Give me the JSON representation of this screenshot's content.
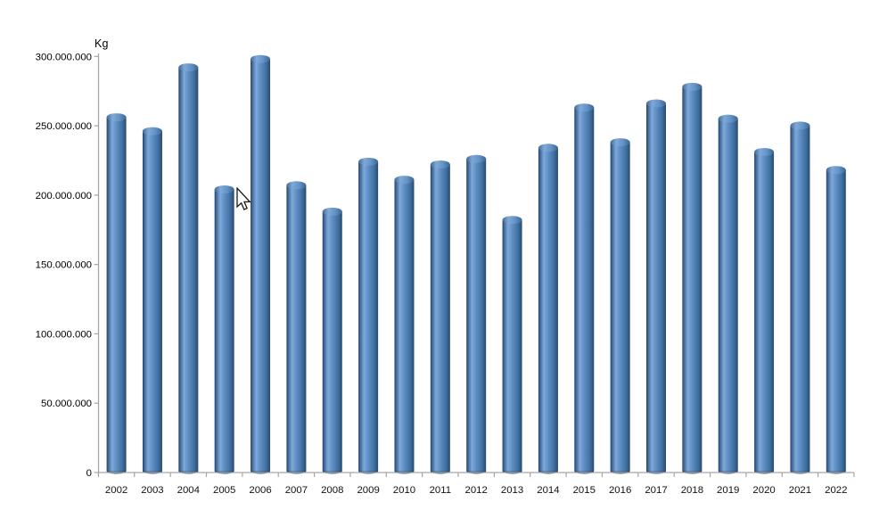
{
  "chart_data": {
    "type": "bar",
    "bar_style": "cylinder-3d",
    "title": "",
    "xlabel": "",
    "ylabel": "Kg",
    "unit": "Kg",
    "categories": [
      "2002",
      "2003",
      "2004",
      "2005",
      "2006",
      "2007",
      "2008",
      "2009",
      "2010",
      "2011",
      "2012",
      "2013",
      "2014",
      "2015",
      "2016",
      "2017",
      "2018",
      "2019",
      "2020",
      "2021",
      "2022"
    ],
    "values": [
      259000000,
      249000000,
      295000000,
      207000000,
      301000000,
      210000000,
      191000000,
      227000000,
      214000000,
      225000000,
      229000000,
      185000000,
      237000000,
      266000000,
      241000000,
      269000000,
      281000000,
      258000000,
      234000000,
      253000000,
      221000000
    ],
    "ylim": [
      0,
      300000000
    ],
    "ytick_step": 50000000,
    "ytick_labels": [
      "0",
      "50.000.000",
      "100.000.000",
      "150.000.000",
      "200.000.000",
      "250.000.000",
      "300.000.000"
    ],
    "grid": false,
    "legend": "none",
    "colors": {
      "bar_base": "#4f81bd",
      "bar_dark_edge": "#28496f",
      "bar_highlight": "#7ea9d8",
      "axis": "#a6a6a6",
      "text": "#000000"
    }
  }
}
